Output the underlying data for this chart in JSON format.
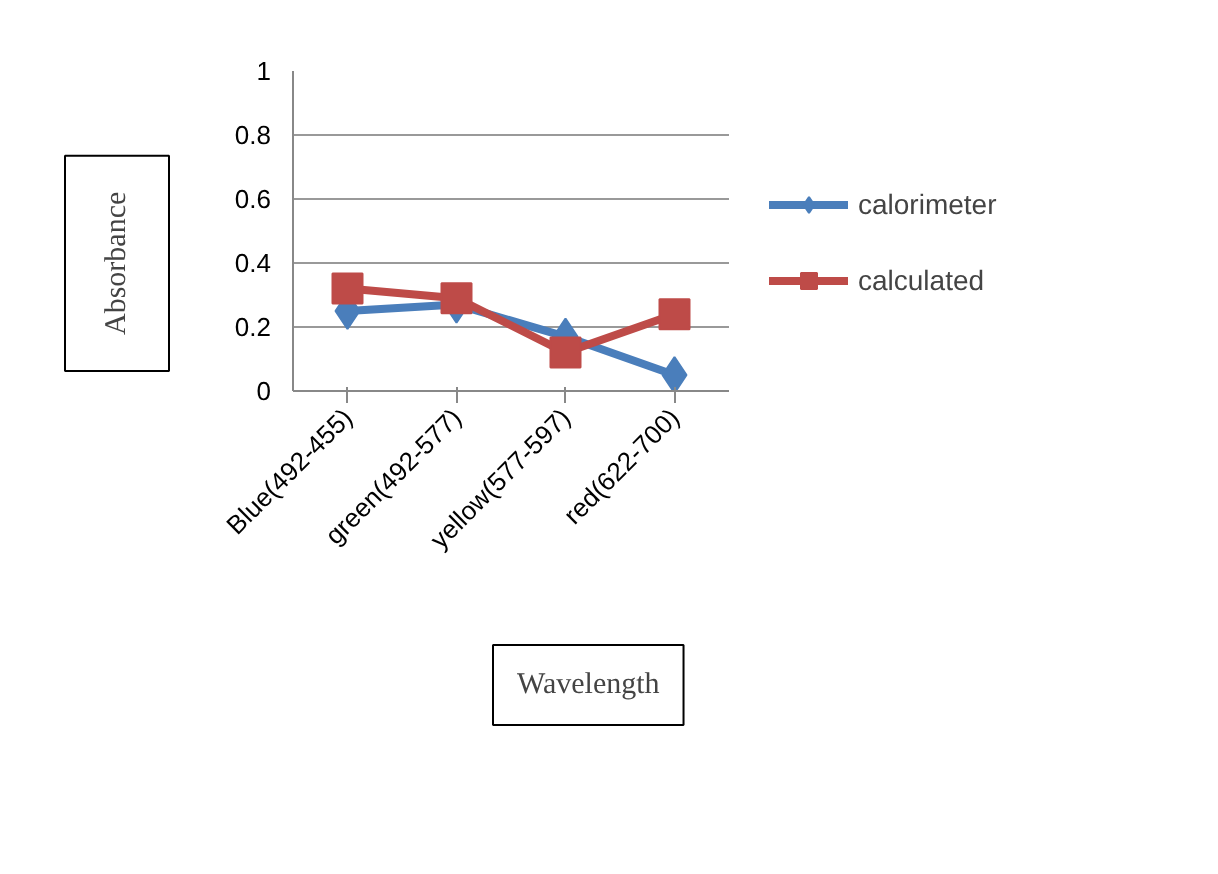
{
  "chart_data": {
    "type": "line",
    "xlabel": "Wavelength",
    "ylabel": "Absorbance",
    "categories": [
      "Blue(492-455)",
      "green(492-577)",
      "yellow(577-597)",
      "red(622-700)"
    ],
    "series": [
      {
        "name": "calorimeter",
        "color": "#4a7ebb",
        "values": [
          0.25,
          0.27,
          0.17,
          0.05
        ],
        "marker": "diamond"
      },
      {
        "name": "calculated",
        "color": "#be4b48",
        "values": [
          0.32,
          0.29,
          0.12,
          0.24
        ],
        "marker": "square"
      }
    ],
    "ylim": [
      0,
      1
    ],
    "yticks": [
      0,
      0.2,
      0.4,
      0.6,
      0.8,
      1
    ],
    "grid": "y",
    "legend": "right"
  }
}
